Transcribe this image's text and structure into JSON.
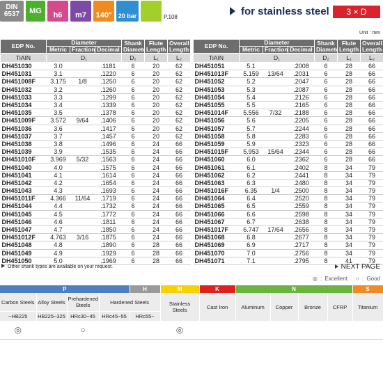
{
  "header": {
    "badges": [
      "DIN 6537",
      "MG",
      "h6",
      "m7",
      "140°",
      "20 bar"
    ],
    "page_ref": "P.108",
    "title": "for stainless steel",
    "ratio": "3 × D",
    "unit": "Unit : mm"
  },
  "table": {
    "columns": {
      "edp": "EDP No.",
      "diameter": "Diameter",
      "metric": "Metric",
      "fractional": "Fractional",
      "decimal": "Decimal",
      "shank": "Shank Diameter",
      "flute": "Flute Length",
      "overall": "Overall Length",
      "coating": "TiAIN",
      "d1": "D₁",
      "d2": "D₂",
      "l1": "L₁",
      "l2": "L₂"
    },
    "left": [
      [
        "DH451030",
        "3.0",
        null,
        ".1181",
        "6",
        "20",
        "62"
      ],
      [
        "DH451031",
        "3.1",
        null,
        ".1220",
        "6",
        "20",
        "62"
      ],
      [
        "DH451008F",
        "3.175",
        "1/8",
        ".1250",
        "6",
        "20",
        "62"
      ],
      [
        "DH451032",
        "3.2",
        null,
        ".1260",
        "6",
        "20",
        "62"
      ],
      [
        "DH451033",
        "3.3",
        null,
        ".1299",
        "6",
        "20",
        "62"
      ],
      [
        "DH451034",
        "3.4",
        null,
        ".1339",
        "6",
        "20",
        "62"
      ],
      [
        "DH451035",
        "3.5",
        null,
        ".1378",
        "6",
        "20",
        "62"
      ],
      [
        "DH451009F",
        "3.572",
        "9/64",
        ".1406",
        "6",
        "20",
        "62"
      ],
      [
        "DH451036",
        "3.6",
        null,
        ".1417",
        "6",
        "20",
        "62"
      ],
      [
        "DH451037",
        "3.7",
        null,
        ".1457",
        "6",
        "20",
        "62"
      ],
      [
        "DH451038",
        "3.8",
        null,
        ".1496",
        "6",
        "24",
        "66"
      ],
      [
        "DH451039",
        "3.9",
        null,
        ".1535",
        "6",
        "24",
        "66"
      ],
      [
        "DH451010F",
        "3.969",
        "5/32",
        ".1563",
        "6",
        "24",
        "66"
      ],
      [
        "DH451040",
        "4.0",
        null,
        ".1575",
        "6",
        "24",
        "66"
      ],
      [
        "DH451041",
        "4.1",
        null,
        ".1614",
        "6",
        "24",
        "66"
      ],
      [
        "DH451042",
        "4.2",
        null,
        ".1654",
        "6",
        "24",
        "66"
      ],
      [
        "DH451043",
        "4.3",
        null,
        ".1693",
        "6",
        "24",
        "66"
      ],
      [
        "DH451011F",
        "4.366",
        "11/64",
        ".1719",
        "6",
        "24",
        "66"
      ],
      [
        "DH451044",
        "4.4",
        null,
        ".1732",
        "6",
        "24",
        "66"
      ],
      [
        "DH451045",
        "4.5",
        null,
        ".1772",
        "6",
        "24",
        "66"
      ],
      [
        "DH451046",
        "4.6",
        null,
        ".1811",
        "6",
        "24",
        "66"
      ],
      [
        "DH451047",
        "4.7",
        null,
        ".1850",
        "6",
        "24",
        "66"
      ],
      [
        "DH451012F",
        "4.763",
        "3/16",
        ".1875",
        "6",
        "24",
        "66"
      ],
      [
        "DH451048",
        "4.8",
        null,
        ".1890",
        "6",
        "28",
        "66"
      ],
      [
        "DH451049",
        "4.9",
        null,
        ".1929",
        "6",
        "28",
        "66"
      ],
      [
        "DH451050",
        "5.0",
        null,
        ".1969",
        "6",
        "28",
        "66"
      ]
    ],
    "right": [
      [
        "DH451051",
        "5.1",
        null,
        ".2008",
        "6",
        "28",
        "66"
      ],
      [
        "DH451013F",
        "5.159",
        "13/64",
        ".2031",
        "6",
        "28",
        "66"
      ],
      [
        "DH451052",
        "5.2",
        null,
        ".2047",
        "6",
        "28",
        "66"
      ],
      [
        "DH451053",
        "5.3",
        null,
        ".2087",
        "6",
        "28",
        "66"
      ],
      [
        "DH451054",
        "5.4",
        null,
        ".2126",
        "6",
        "28",
        "66"
      ],
      [
        "DH451055",
        "5.5",
        null,
        ".2165",
        "6",
        "28",
        "66"
      ],
      [
        "DH451014F",
        "5.556",
        "7/32",
        ".2188",
        "6",
        "28",
        "66"
      ],
      [
        "DH451056",
        "5.6",
        null,
        ".2205",
        "6",
        "28",
        "66"
      ],
      [
        "DH451057",
        "5.7",
        null,
        ".2244",
        "6",
        "28",
        "66"
      ],
      [
        "DH451058",
        "5.8",
        null,
        ".2283",
        "6",
        "28",
        "66"
      ],
      [
        "DH451059",
        "5.9",
        null,
        ".2323",
        "6",
        "28",
        "66"
      ],
      [
        "DH451015F",
        "5.953",
        "15/64",
        ".2344",
        "6",
        "28",
        "66"
      ],
      [
        "DH451060",
        "6.0",
        null,
        ".2362",
        "6",
        "28",
        "66"
      ],
      [
        "DH451061",
        "6.1",
        null,
        ".2402",
        "8",
        "34",
        "79"
      ],
      [
        "DH451062",
        "6.2",
        null,
        ".2441",
        "8",
        "34",
        "79"
      ],
      [
        "DH451063",
        "6.3",
        null,
        ".2480",
        "8",
        "34",
        "79"
      ],
      [
        "DH451016F",
        "6.35",
        "1/4",
        ".2500",
        "8",
        "34",
        "79"
      ],
      [
        "DH451064",
        "6.4",
        null,
        ".2520",
        "8",
        "34",
        "79"
      ],
      [
        "DH451065",
        "6.5",
        null,
        ".2559",
        "8",
        "34",
        "79"
      ],
      [
        "DH451066",
        "6.6",
        null,
        ".2598",
        "8",
        "34",
        "79"
      ],
      [
        "DH451067",
        "6.7",
        null,
        ".2638",
        "8",
        "34",
        "79"
      ],
      [
        "DH451017F",
        "6.747",
        "17/64",
        ".2656",
        "8",
        "34",
        "79"
      ],
      [
        "DH451068",
        "6.8",
        null,
        ".2677",
        "8",
        "34",
        "79"
      ],
      [
        "DH451069",
        "6.9",
        null,
        ".2717",
        "8",
        "34",
        "79"
      ],
      [
        "DH451070",
        "7.0",
        null,
        ".2756",
        "8",
        "34",
        "79"
      ],
      [
        "DH451071",
        "7.1",
        null,
        ".2795",
        "8",
        "41",
        "79"
      ]
    ]
  },
  "footer": {
    "note": "Other shank types are available on your request.",
    "next": "NEXT PAGE",
    "legend": [
      "◎ : Excellent",
      "○ : Good"
    ]
  },
  "materials": {
    "groups": [
      {
        "code": "P",
        "color": "#4f7fc0"
      },
      {
        "code": "H",
        "color": "#9a9a9a"
      },
      {
        "code": "M",
        "color": "#f5d200"
      },
      {
        "code": "K",
        "color": "#e0201f"
      },
      {
        "code": "N",
        "color": "#6db33f"
      },
      {
        "code": "S",
        "color": "#f08a24"
      }
    ],
    "names": [
      "Carbon Steels",
      "Alloy Steels",
      "Prehardened Steels",
      "Hardened Steels",
      "Stainless Steels",
      "Cast Iron",
      "Aluminum",
      "Copper",
      "Bronze",
      "CFRP",
      "Titanium"
    ],
    "hardness": [
      "~HB225",
      "HB225~325",
      "HRc30~45",
      "HRc45~55",
      "HRc55~"
    ],
    "ratings": [
      "◎",
      null,
      "○",
      null,
      null,
      "◎",
      null,
      null,
      null,
      null,
      null,
      null
    ]
  }
}
